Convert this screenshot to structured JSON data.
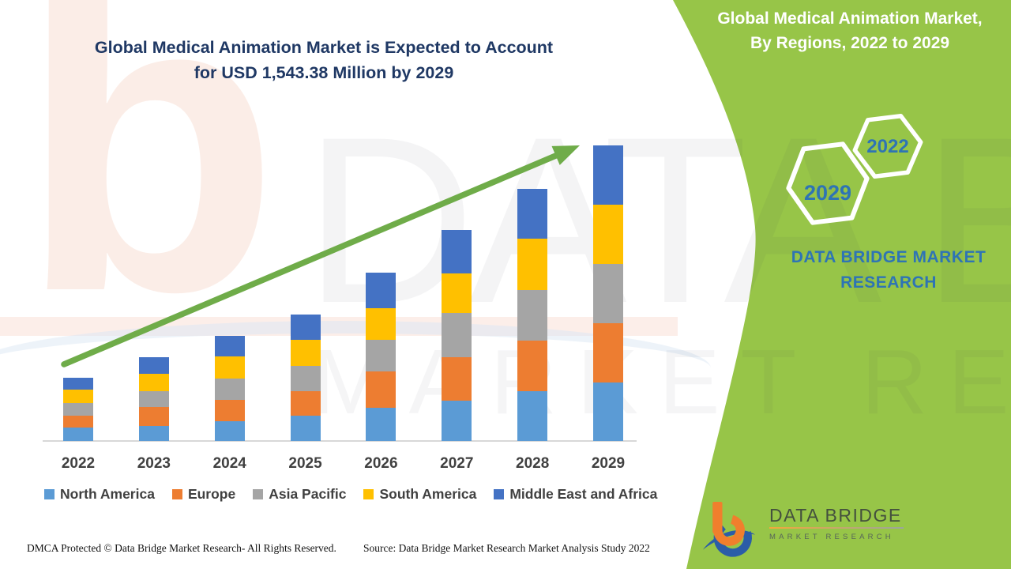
{
  "header": {
    "title_line1": "Global Medical Animation Market is Expected to Account",
    "title_line2": "for USD 1,543.38 Million by 2029"
  },
  "side_panel": {
    "title_line1": "Global Medical Animation Market,",
    "title_line2": "By Regions, 2022 to 2029",
    "hexagon_small_label": "2022",
    "hexagon_large_label": "2029",
    "brand_line1": "DATA BRIDGE MARKET",
    "brand_line2": "RESEARCH"
  },
  "logo": {
    "brand": "DATA BRIDGE",
    "tagline": "MARKET RESEARCH"
  },
  "footer": {
    "left": "DMCA Protected © Data Bridge Market Research- All Rights Reserved.",
    "right": "Source: Data Bridge Market Research Market Analysis Study 2022"
  },
  "watermark": {
    "logo_letter": "b",
    "line1": "DATA BRIDGE",
    "line2": "MARKET RESEARCH"
  },
  "colors": {
    "panel_green": "#97C548",
    "arrow_green": "#6FAC49",
    "title_navy": "#1F3864",
    "steel_blue": "#2E74B5",
    "axis_gray": "#D8D8D8",
    "legend_text": "#404040",
    "logo_orange": "#F07F2D",
    "logo_blue": "#2B5DA7",
    "hexagon_stroke": "#FFFFFF"
  },
  "chart_data": {
    "type": "bar",
    "stacked": true,
    "title": "Global Medical Animation Market is Expected to Account for USD 1,543.38 Million by 2029",
    "unit": "USD Million",
    "xlabel": "",
    "ylabel": "",
    "categories": [
      "2022",
      "2023",
      "2024",
      "2025",
      "2026",
      "2027",
      "2028",
      "2029"
    ],
    "series": [
      {
        "name": "North America",
        "color": "#5B9BD5",
        "values": [
          70,
          80,
          103,
          132,
          173,
          212,
          258,
          305
        ]
      },
      {
        "name": "Europe",
        "color": "#ED7D31",
        "values": [
          62,
          99,
          111,
          127,
          192,
          227,
          266,
          310
        ]
      },
      {
        "name": "Asia Pacific",
        "color": "#A5A5A5",
        "values": [
          68,
          83,
          113,
          134,
          163,
          231,
          266,
          310
        ]
      },
      {
        "name": "South America",
        "color": "#FFC000",
        "values": [
          68,
          89,
          114,
          135,
          165,
          206,
          266,
          307
        ]
      },
      {
        "name": "Middle East and Africa",
        "color": "#4472C4",
        "values": [
          62,
          85,
          109,
          133,
          186,
          225,
          262,
          311.38
        ]
      }
    ],
    "totals": [
      330,
      436,
      550,
      661,
      879,
      1101,
      1318,
      1543.38
    ],
    "final_year_total_label": "USD 1,543.38 Million",
    "legend_position": "bottom",
    "gridlines": false,
    "y_axis_shown": false,
    "trend_arrow": true
  }
}
